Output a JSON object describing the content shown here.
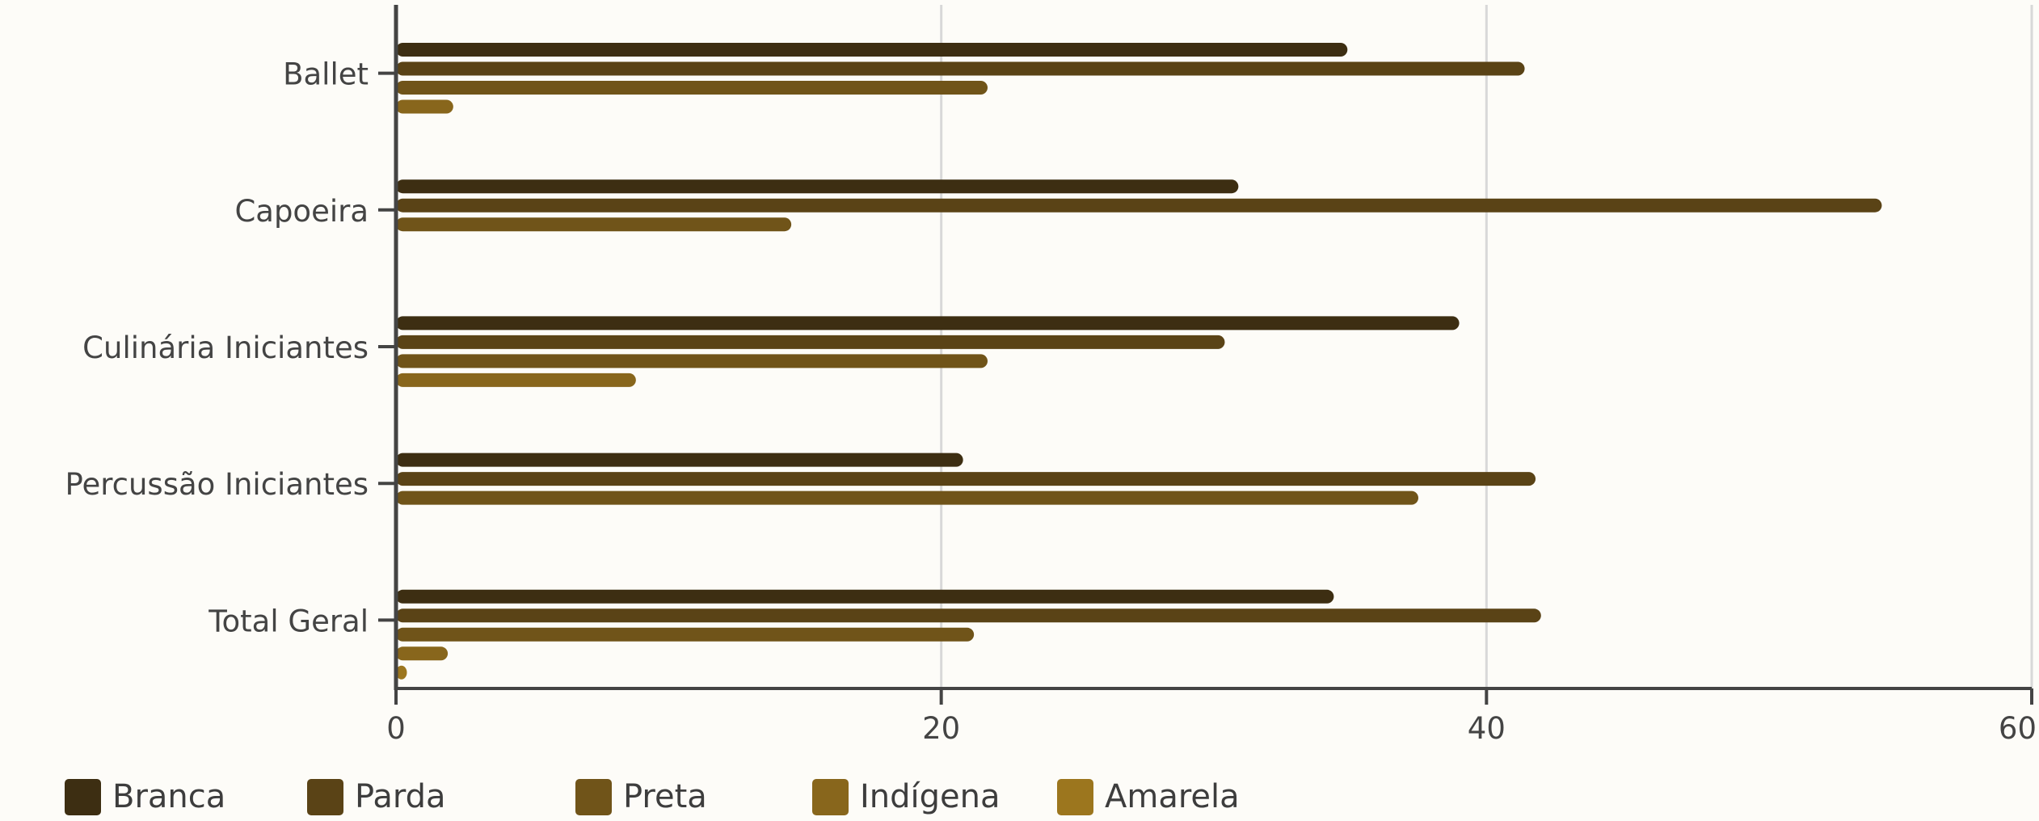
{
  "chart_data": {
    "type": "bar",
    "orientation": "horizontal",
    "title": "",
    "xlabel": "",
    "ylabel": "",
    "categories": [
      "Ballet",
      "Capoeira",
      "Culinária Iniciantes",
      "Percussão Iniciantes",
      "Total Geral"
    ],
    "series": [
      {
        "name": "Branca",
        "color": "#3d2e12",
        "values": [
          34.9,
          30.9,
          39.0,
          20.8,
          34.4
        ]
      },
      {
        "name": "Parda",
        "color": "#5a4316",
        "values": [
          41.4,
          54.5,
          30.4,
          41.8,
          42.0
        ]
      },
      {
        "name": "Preta",
        "color": "#705419",
        "values": [
          21.7,
          14.5,
          21.7,
          37.5,
          21.2
        ]
      },
      {
        "name": "Indígena",
        "color": "#88661c",
        "values": [
          2.1,
          null,
          8.8,
          null,
          1.9
        ]
      },
      {
        "name": "Amarela",
        "color": "#9c761e",
        "values": [
          null,
          null,
          null,
          null,
          0.4
        ]
      }
    ],
    "xlim": [
      0,
      60
    ],
    "xticks": [
      "0",
      "20",
      "40",
      "60"
    ],
    "grid": "vertical",
    "legend_position": "bottom"
  }
}
